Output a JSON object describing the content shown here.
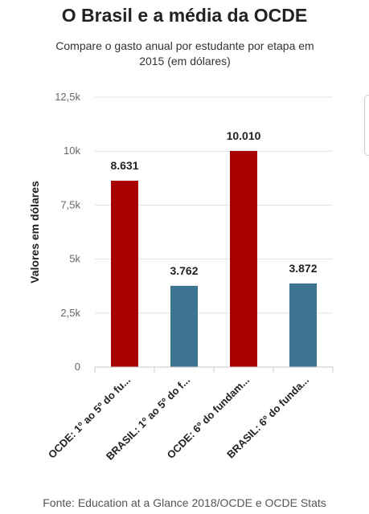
{
  "chart_data": {
    "type": "bar",
    "title": "O Brasil e a média da OCDE",
    "subtitle_lines": [
      "Compare o gasto anual por estudante por etapa em",
      "2015 (em dólares)"
    ],
    "ylabel": "Valores em dólares",
    "xlabel": "",
    "categories": [
      "OCDE: 1º ao 5º do fu...",
      "BRASIL: 1º ao 5º do f...",
      "OCDE: 6º do fundam...",
      "BRASIL: 6º do funda..."
    ],
    "values": [
      8631,
      3762,
      10010,
      3872
    ],
    "data_labels": [
      "8.631",
      "3.762",
      "10.010",
      "3.872"
    ],
    "bar_colors": [
      "#a80000",
      "#3d7590",
      "#a80000",
      "#3d7590"
    ],
    "ylim": [
      0,
      12500
    ],
    "yticks": [
      0,
      2500,
      5000,
      7500,
      10000,
      12500
    ],
    "ytick_labels": [
      "0",
      "2,5k",
      "5k",
      "7,5k",
      "10k",
      "12,5k"
    ],
    "grid": true,
    "legend": "none"
  },
  "source": "Fonte: Education at a Glance 2018/OCDE e OCDE Stats"
}
